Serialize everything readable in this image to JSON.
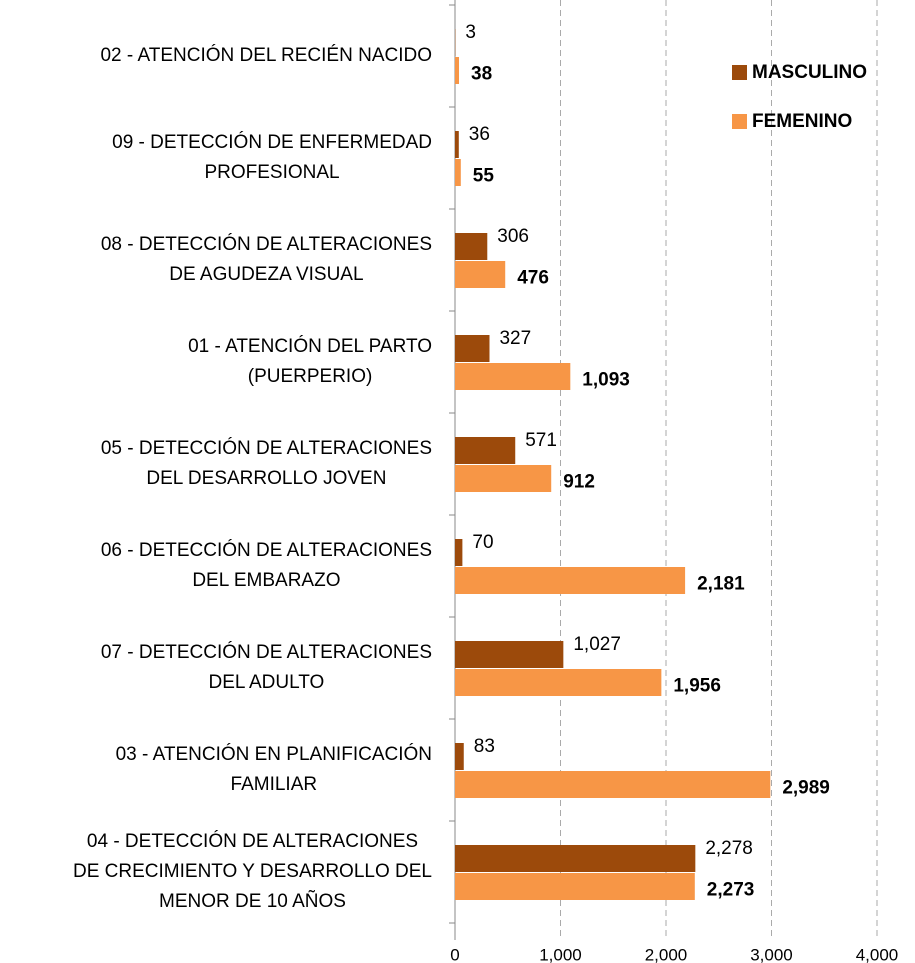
{
  "chart_data": {
    "type": "bar",
    "orientation": "horizontal",
    "categories": [
      [
        "02 - ATENCIÓN DEL RECIÉN NACIDO"
      ],
      [
        "09 - DETECCIÓN DE ENFERMEDAD",
        "PROFESIONAL"
      ],
      [
        "08 - DETECCIÓN DE ALTERACIONES",
        "DE AGUDEZA VISUAL"
      ],
      [
        "01 - ATENCIÓN DEL PARTO",
        "(PUERPERIO)"
      ],
      [
        "05 - DETECCIÓN DE ALTERACIONES",
        "DEL DESARROLLO JOVEN"
      ],
      [
        "06 - DETECCIÓN DE ALTERACIONES",
        "DEL EMBARAZO"
      ],
      [
        "07 - DETECCIÓN DE ALTERACIONES",
        "DEL ADULTO"
      ],
      [
        "03 - ATENCIÓN EN PLANIFICACIÓN",
        "FAMILIAR"
      ],
      [
        "04 - DETECCIÓN DE ALTERACIONES",
        "DE CRECIMIENTO  Y DESARROLLO DEL",
        "MENOR DE 10 AÑOS"
      ]
    ],
    "series": [
      {
        "name": "MASCULINO",
        "color": "#9c4a0b",
        "values": [
          3,
          36,
          306,
          327,
          571,
          70,
          1027,
          83,
          2278
        ],
        "value_labels": [
          "3",
          "36",
          "306",
          "327",
          "571",
          "70",
          "1,027",
          "83",
          "2,278"
        ]
      },
      {
        "name": "FEMENINO",
        "color": "#f79646",
        "values": [
          38,
          55,
          476,
          1093,
          912,
          2181,
          1956,
          2989,
          2273
        ],
        "value_labels": [
          "38",
          "55",
          "476",
          "1,093",
          "912",
          "2,181",
          "1,956",
          "2,989",
          "2,273"
        ]
      }
    ],
    "xlim": [
      0,
      4000
    ],
    "xticks": [
      0,
      {
        "value": 1000,
        "label": "1,000"
      },
      {
        "value": 2000,
        "label": "2,000"
      },
      {
        "value": 3000,
        "label": "3,000"
      },
      {
        "value": 4000,
        "label": "4,000"
      }
    ],
    "grid": true,
    "legend": "top-right"
  }
}
